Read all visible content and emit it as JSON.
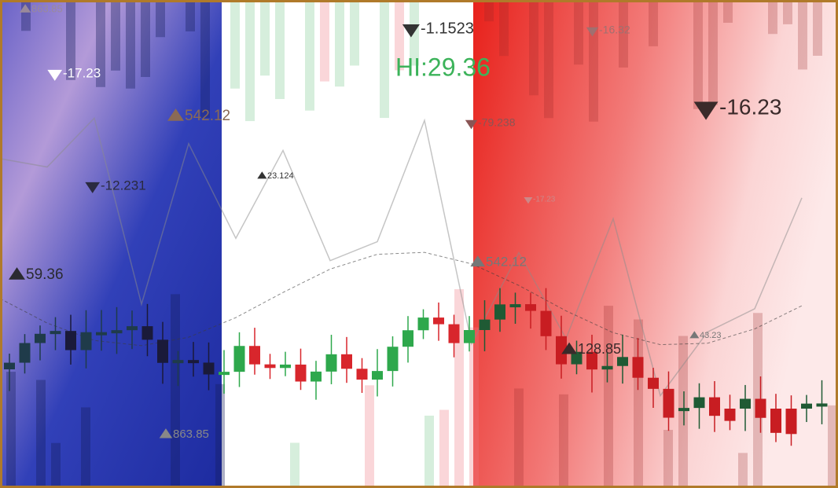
{
  "labels": [
    "863.85",
    "-17.23",
    "542.12",
    "-12.231",
    "59.36",
    "23.124",
    "-1.1523",
    "HI:29.36",
    "-79.238",
    "-16.32",
    "-16.23",
    "-17.23",
    "542.12",
    "128.85",
    "43.23",
    "863.85"
  ]
}
